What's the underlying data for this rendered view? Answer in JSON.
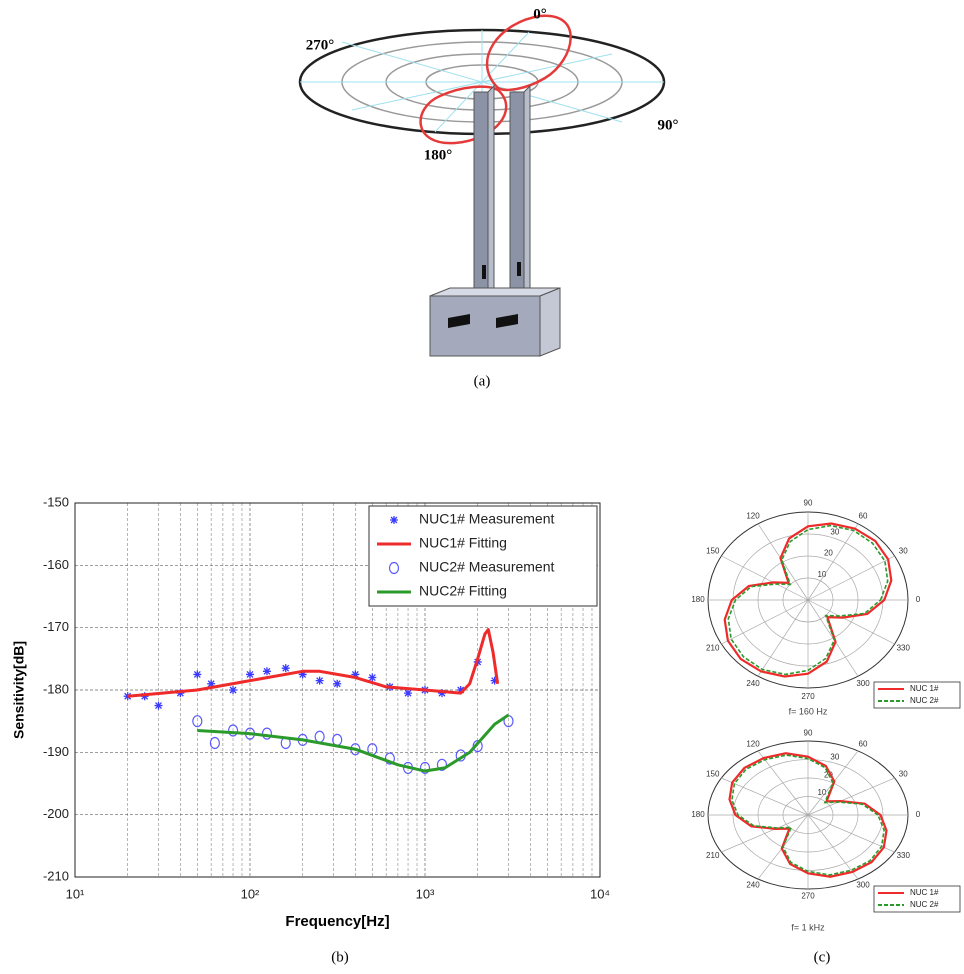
{
  "panel_a": {
    "labels": [
      "0°",
      "90°",
      "180°",
      "270°"
    ]
  },
  "captions": [
    "(a)",
    "(b)",
    "(c)"
  ],
  "chart_data": [
    {
      "type": "line",
      "xlabel": "Frequency[Hz]",
      "ylabel": "Sensitivity[dB]",
      "xscale": "log",
      "xlim": [
        10,
        10000
      ],
      "xticks": [
        {
          "value": 10,
          "label": "10¹"
        },
        {
          "value": 100,
          "label": "10²"
        },
        {
          "value": 1000,
          "label": "10³"
        },
        {
          "value": 10000,
          "label": "10⁴"
        }
      ],
      "ylim": [
        -210,
        -150
      ],
      "yticks": [
        -210,
        -200,
        -190,
        -180,
        -170,
        -160,
        -150
      ],
      "grid": true,
      "legend": "upper right",
      "series": [
        {
          "name": "NUC1# Measurement",
          "color": "#3a3aff",
          "style": "star",
          "x": [
            20,
            25,
            30,
            40,
            50,
            60,
            80,
            100,
            125,
            160,
            200,
            250,
            315,
            400,
            500,
            630,
            800,
            1000,
            1250,
            1600,
            2000,
            2500
          ],
          "values": [
            -181,
            -181,
            -182.5,
            -180.5,
            -177.5,
            -179,
            -180,
            -177.5,
            -177,
            -176.5,
            -177.5,
            -178.5,
            -179,
            -177.5,
            -178,
            -179.5,
            -180.5,
            -180,
            -180.5,
            -180,
            -175.5,
            -178.5
          ]
        },
        {
          "name": "NUC1# Fitting",
          "color": "#ee2a2a",
          "style": "line",
          "x": [
            20,
            50,
            100,
            200,
            250,
            400,
            600,
            1000,
            1600,
            1800,
            2000,
            2200,
            2300,
            2450,
            2600
          ],
          "values": [
            -181,
            -180,
            -178.5,
            -177,
            -177,
            -178,
            -179.5,
            -180,
            -180.5,
            -179,
            -175,
            -171,
            -170.3,
            -174,
            -179
          ]
        },
        {
          "name": "NUC2# Measurement",
          "color": "#5a5aff",
          "style": "circle",
          "x": [
            50,
            63,
            80,
            100,
            125,
            160,
            200,
            250,
            315,
            400,
            500,
            630,
            800,
            1000,
            1250,
            1600,
            2000,
            3000
          ],
          "values": [
            -185,
            -188.5,
            -186.5,
            -187,
            -187,
            -188.5,
            -188,
            -187.5,
            -188,
            -189.5,
            -189.5,
            -191,
            -192.5,
            -192.5,
            -192,
            -190.5,
            -189,
            -185
          ]
        },
        {
          "name": "NUC2# Fitting",
          "color": "#2a9a2a",
          "style": "line",
          "x": [
            50,
            100,
            200,
            400,
            700,
            1000,
            1300,
            1800,
            2500,
            3000
          ],
          "values": [
            -186.5,
            -187,
            -188,
            -189.5,
            -192,
            -193,
            -192.5,
            -190,
            -185.5,
            -184
          ]
        }
      ]
    },
    {
      "type": "polar",
      "caption": "f= 160 Hz",
      "theta": [
        0,
        15,
        30,
        45,
        60,
        75,
        90,
        105,
        120,
        135,
        150,
        165,
        180,
        195,
        210,
        225,
        240,
        255,
        270,
        285,
        300,
        315,
        330,
        345
      ],
      "thetaticks": [
        0,
        30,
        60,
        90,
        120,
        150,
        180,
        210,
        240,
        270,
        300,
        330
      ],
      "rlim": [
        0,
        40
      ],
      "rticks": [
        10,
        20,
        30
      ],
      "legend": "lower right",
      "series": [
        {
          "name": "NUC 1#",
          "color": "#ee2a2a",
          "style": "solid",
          "values": [
            30.5,
            34.5,
            37,
            38,
            37.5,
            36,
            33.5,
            29,
            22,
            11,
            16,
            24.5,
            30.5,
            34.5,
            37,
            38,
            37.5,
            36,
            33.5,
            29,
            22,
            11,
            16,
            24.5
          ]
        },
        {
          "name": "NUC 2#",
          "color": "#2a9a2a",
          "style": "dashed",
          "values": [
            29,
            33,
            35.5,
            36.5,
            36.5,
            35,
            32,
            27.5,
            21,
            10,
            14.5,
            23.5,
            29,
            33,
            35.5,
            36.5,
            36.5,
            35,
            32,
            27.5,
            21,
            10,
            14.5,
            23.5
          ]
        }
      ]
    },
    {
      "type": "polar",
      "caption": "f= 1 kHz",
      "theta": [
        0,
        15,
        30,
        45,
        60,
        75,
        90,
        105,
        120,
        135,
        150,
        165,
        180,
        195,
        210,
        225,
        240,
        255,
        270,
        285,
        300,
        315,
        330,
        345
      ],
      "thetaticks": [
        0,
        30,
        60,
        90,
        120,
        150,
        180,
        210,
        240,
        270,
        300,
        330
      ],
      "rlim": [
        0,
        40
      ],
      "rticks": [
        10,
        20,
        30
      ],
      "legend": "lower right",
      "series": [
        {
          "name": "NUC 1#",
          "color": "#ee2a2a",
          "style": "solid",
          "values": [
            29,
            23.5,
            15,
            10.5,
            21,
            27.5,
            31.5,
            34.5,
            35.5,
            36,
            35,
            32.5,
            29,
            23.5,
            15,
            10.5,
            21,
            27.5,
            31.5,
            34.5,
            35.5,
            36,
            35,
            32.5
          ]
        },
        {
          "name": "NUC 2#",
          "color": "#2a9a2a",
          "style": "dashed",
          "values": [
            28,
            22.5,
            14,
            9.5,
            20,
            26.5,
            30.5,
            33.5,
            34.5,
            35,
            34,
            31.5,
            28,
            22.5,
            14,
            9.5,
            20,
            26.5,
            30.5,
            33.5,
            34.5,
            35,
            34,
            31.5
          ]
        }
      ]
    }
  ]
}
